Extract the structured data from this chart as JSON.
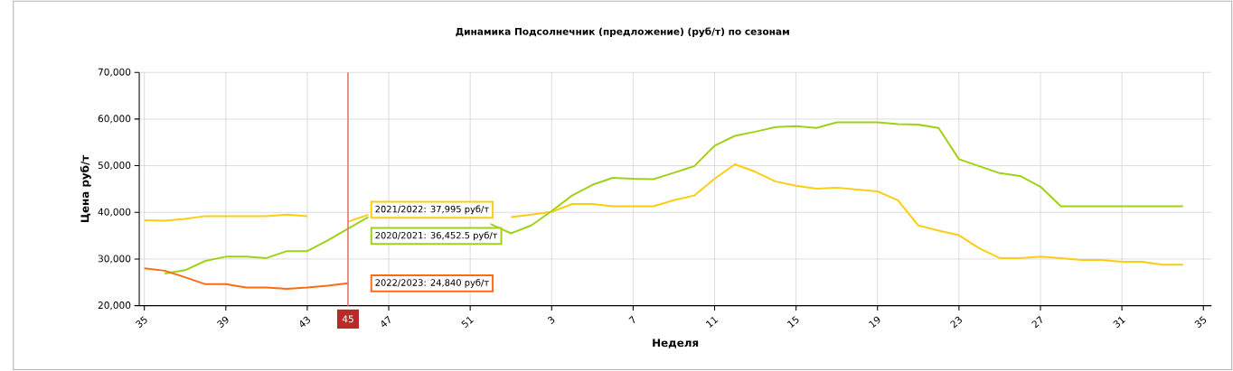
{
  "chart_data": {
    "type": "line",
    "title": "Динамика Подсолнечник (предложение) (руб/т) по сезонам",
    "xlabel": "Неделя",
    "ylabel": "Цена руб/т",
    "categories": [
      "35",
      null,
      null,
      null,
      "39",
      null,
      null,
      null,
      "43",
      null,
      "45",
      null,
      "47",
      null,
      null,
      null,
      "51",
      null,
      null,
      null,
      "3",
      null,
      null,
      null,
      "7",
      null,
      null,
      null,
      "11",
      null,
      null,
      null,
      "15",
      null,
      null,
      null,
      "19",
      null,
      null,
      null,
      "23",
      null,
      null,
      null,
      "27",
      null,
      null,
      null,
      "31",
      null,
      null,
      null,
      "35"
    ],
    "series": [
      {
        "color": "#fccd12",
        "values": [
          38300,
          38200,
          38600,
          39200,
          39200,
          39200,
          39200,
          39500,
          39200,
          null,
          38000,
          39500,
          null,
          null,
          null,
          null,
          null,
          null,
          39000,
          39500,
          40100,
          41800,
          41800,
          41300,
          41300,
          41300,
          42600,
          43600,
          47200,
          50300,
          48700,
          46600,
          45700,
          45100,
          45300,
          44900,
          44500,
          42600,
          37200,
          36100,
          35100,
          32300,
          30200,
          30200,
          30500,
          30200,
          29800,
          29800,
          29400,
          29400,
          28800,
          28800,
          null
        ]
      },
      {
        "color": "#a0d119",
        "values": [
          null,
          26900,
          27600,
          29600,
          30500,
          30500,
          30200,
          31700,
          31700,
          34000,
          36500,
          39000,
          null,
          null,
          null,
          null,
          null,
          37500,
          35500,
          37200,
          40300,
          43600,
          45900,
          47400,
          47200,
          47100,
          48500,
          49900,
          54300,
          56400,
          57300,
          58300,
          58500,
          58100,
          59300,
          59300,
          59300,
          58900,
          58800,
          58100,
          51400,
          49900,
          48400,
          47800,
          45500,
          41300,
          41300,
          41300,
          41300,
          41300,
          41300,
          41300,
          null
        ]
      },
      {
        "color": "#ff6b11",
        "values": [
          28000,
          27500,
          26100,
          24600,
          24600,
          23900,
          23900,
          23600,
          23900,
          24300,
          24800,
          null,
          null,
          null,
          null,
          null,
          null,
          null,
          null,
          null,
          null,
          null,
          null,
          null,
          null,
          null,
          null,
          null,
          null,
          null,
          null,
          null,
          null,
          null,
          null,
          null,
          null,
          null,
          null,
          null,
          null,
          null,
          null,
          null,
          null,
          null,
          null,
          null,
          null,
          null,
          null,
          null,
          null
        ]
      }
    ],
    "ylim": [
      20000,
      70000
    ],
    "yticks": [
      {
        "value": 20000,
        "label": "20,000"
      },
      {
        "value": 30000,
        "label": "30,000"
      },
      {
        "value": 40000,
        "label": "40,000"
      },
      {
        "value": 50000,
        "label": "50,000"
      },
      {
        "value": 60000,
        "label": "60,000"
      },
      {
        "value": 70000,
        "label": "70,000"
      }
    ],
    "grid": true,
    "ref_lines": [
      {
        "axis": "x",
        "value": "45",
        "color": "#e37373"
      }
    ],
    "annotations": [
      "2021/2022: 37,995 руб/т",
      "2020/2021: 36,452.5 руб/т",
      "2022/2023: 24,840 руб/т"
    ]
  }
}
